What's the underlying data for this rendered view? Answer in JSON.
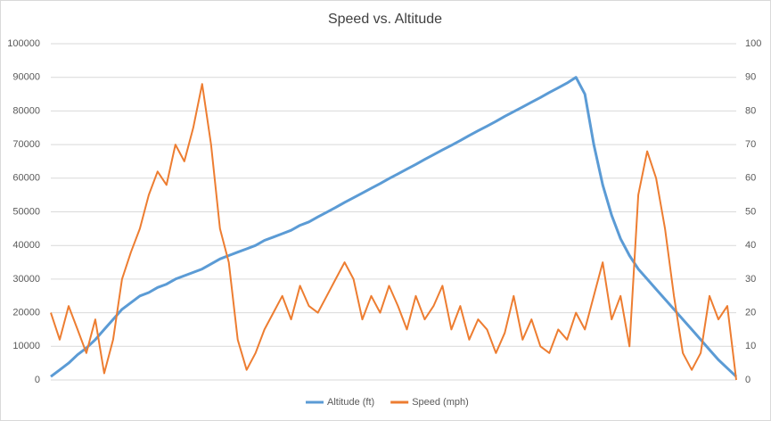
{
  "chart_data": {
    "type": "line",
    "title": "Speed vs. Altitude",
    "ylim": [
      0,
      100000
    ],
    "yticks": [
      0,
      10000,
      20000,
      30000,
      40000,
      50000,
      60000,
      70000,
      80000,
      90000,
      100000
    ],
    "y2lim": [
      0,
      100
    ],
    "y2ticks": [
      0,
      10,
      20,
      30,
      40,
      50,
      60,
      70,
      80,
      90,
      100
    ],
    "grid": true,
    "legend": "bottom",
    "series": [
      {
        "name": "Altitude (ft)",
        "color": "#5b9bd5",
        "values": [
          1000,
          3000,
          5000,
          7500,
          9500,
          12000,
          15000,
          18000,
          21000,
          23000,
          25000,
          26000,
          27500,
          28500,
          30000,
          31000,
          32000,
          33000,
          34500,
          36000,
          37000,
          38000,
          39000,
          40000,
          41500,
          42500,
          43500,
          44500,
          46000,
          47000,
          48500,
          49900,
          51300,
          52800,
          54200,
          55600,
          57000,
          58400,
          59900,
          61300,
          62700,
          64100,
          65600,
          67000,
          68400,
          69800,
          71200,
          72700,
          74100,
          75500,
          76900,
          78400,
          79800,
          81200,
          82600,
          84000,
          85500,
          86900,
          88300,
          90000,
          85000,
          70000,
          58000,
          49000,
          42000,
          37000,
          33000,
          30000,
          27000,
          24000,
          21000,
          18000,
          15000,
          12000,
          9000,
          6000,
          3500,
          1000
        ]
      },
      {
        "name": "Speed (mph)",
        "color": "#ed7d31",
        "axis": "y2",
        "values": [
          20,
          12,
          22,
          15,
          8,
          18,
          2,
          12,
          30,
          38,
          45,
          55,
          62,
          58,
          70,
          65,
          75,
          88,
          70,
          45,
          35,
          12,
          3,
          8,
          15,
          20,
          25,
          18,
          28,
          22,
          20,
          25,
          30,
          35,
          30,
          18,
          25,
          20,
          28,
          22,
          15,
          25,
          18,
          22,
          28,
          15,
          22,
          12,
          18,
          15,
          8,
          14,
          25,
          12,
          18,
          10,
          8,
          15,
          12,
          20,
          15,
          25,
          35,
          18,
          25,
          10,
          55,
          68,
          60,
          45,
          25,
          8,
          3,
          8,
          25,
          18,
          22,
          0
        ]
      }
    ]
  }
}
